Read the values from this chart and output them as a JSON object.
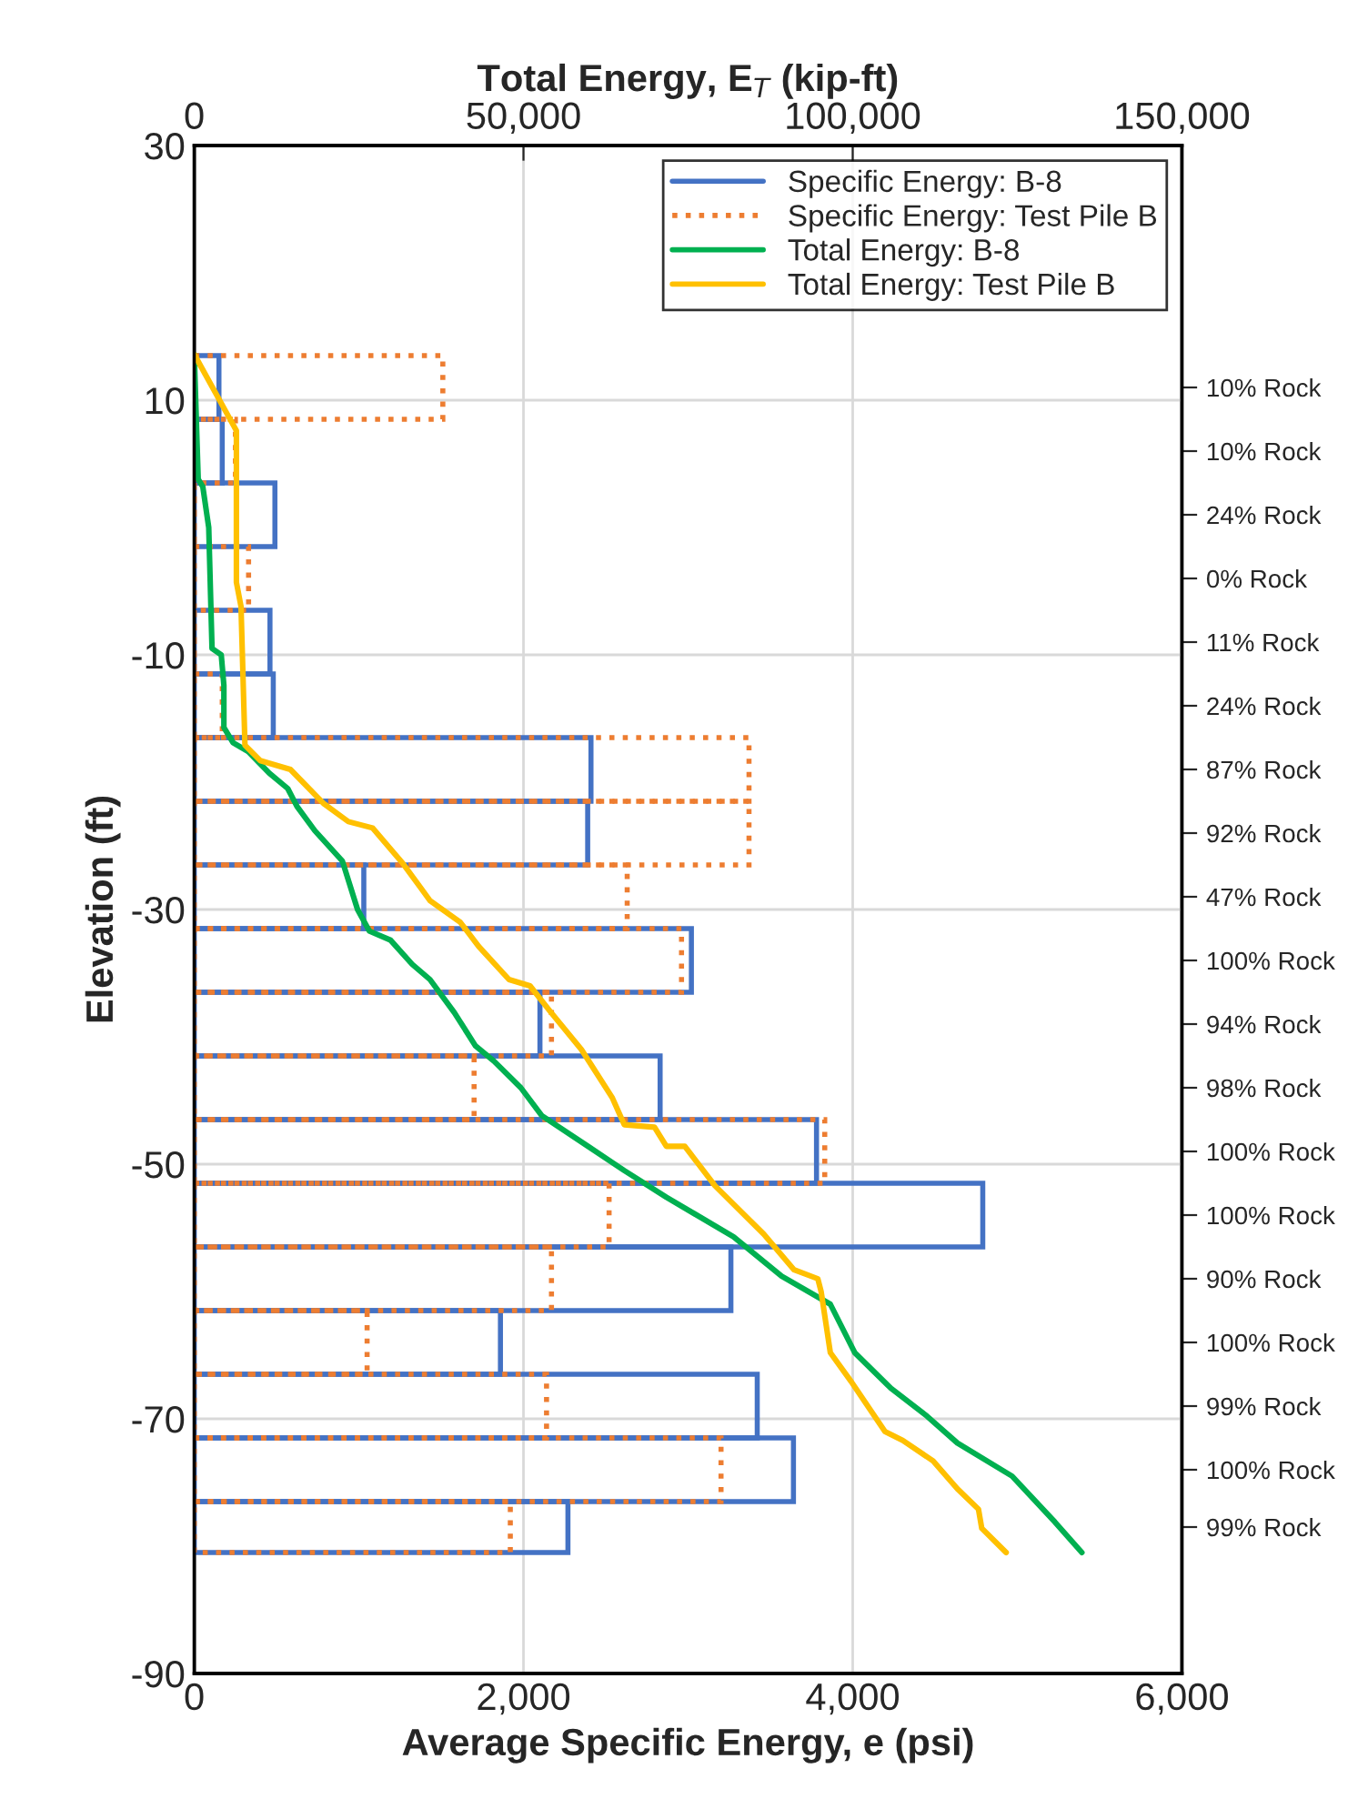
{
  "chart_data": {
    "type": "histogram",
    "orientation": "horizontal",
    "xlabel": "Average Specific Energy, e (psi)",
    "ylabel": "Elevation (ft)",
    "x2label": "Total Energy, E$_{T}$ (kip-ft)",
    "xlim": [
      0,
      6000
    ],
    "xticks": [
      0,
      {
        "value": 2000,
        "label": "2,000"
      },
      {
        "value": 4000,
        "label": "4,000"
      },
      {
        "value": 6000,
        "label": "6,000"
      }
    ],
    "x2lim": [
      0,
      150000
    ],
    "x2ticks": [
      0,
      {
        "value": 50000,
        "label": "50,000"
      },
      {
        "value": 100000,
        "label": "100,000"
      },
      {
        "value": 150000,
        "label": "150,000"
      }
    ],
    "ylim": [
      -90,
      30
    ],
    "yticks": [
      30,
      10,
      -10,
      -30,
      -50,
      -70,
      -90
    ],
    "annotations": [
      "10% Rock",
      "10% Rock",
      "24% Rock",
      "0% Rock",
      "11% Rock",
      "24% Rock",
      "87% Rock",
      "92% Rock",
      "47% Rock",
      "100% Rock",
      "94% Rock",
      "98% Rock",
      "100% Rock",
      "100% Rock",
      "90% Rock",
      "100% Rock",
      "99% Rock",
      "100% Rock",
      "99% Rock"
    ],
    "grid": true,
    "legend": "top right",
    "series": [
      {
        "name": "Specific Energy: B-8",
        "color": "#4472c4",
        "line_style": "solid",
        "bins": [
          13.5,
          8.5,
          3.5,
          -1.5,
          -6.5,
          -11.5,
          -16.5,
          -21.5,
          -26.5,
          -31.5,
          -36.5,
          -41.5,
          -46.5,
          -51.5,
          -56.5,
          -61.5,
          -66.5,
          -71.5,
          -76.5,
          -80.5
        ],
        "values": [
          150,
          170,
          490,
          0,
          460,
          480,
          2410,
          2390,
          1030,
          3020,
          2100,
          2830,
          3780,
          4790,
          3260,
          1860,
          3420,
          3640,
          2270
        ]
      },
      {
        "name": "Specific Energy: Test Pile B",
        "color": "#ed7d31",
        "line_style": "dotted",
        "bins": [
          13.5,
          8.5,
          3.5,
          -1.5,
          -6.5,
          -11.5,
          -16.5,
          -21.5,
          -26.5,
          -31.5,
          -36.5,
          -41.5,
          -46.5,
          -51.5,
          -56.5,
          -61.5,
          -66.5,
          -71.5,
          -76.5,
          -80.5
        ],
        "values": [
          1510,
          250,
          0,
          330,
          0,
          170,
          3370,
          3370,
          2630,
          2960,
          2170,
          1700,
          3830,
          2520,
          2170,
          1050,
          2140,
          3200,
          1920
        ]
      },
      {
        "name": "Total Energy: B-8",
        "color": "#00b050",
        "type": "line",
        "axis": "x2",
        "x": [
          13.6,
          3.8,
          3.2,
          0,
          -9.5,
          -10,
          -12.4,
          -15.7,
          -16.9,
          -17.6,
          -19.3,
          -20.5,
          -21.9,
          -23.8,
          -26.2,
          -30,
          -31.7,
          -32.4,
          -34.3,
          -35.5,
          -38.1,
          -40.7,
          -41.9,
          -44,
          -46.2,
          -48.6,
          -50.5,
          -52.6,
          -55.7,
          -58.8,
          -61,
          -64.8,
          -67.6,
          -69.8,
          -71.9,
          -74.5,
          -78.1,
          -80.5
        ],
        "values": [
          0,
          600,
          1300,
          2200,
          2700,
          4100,
          4500,
          4500,
          5900,
          8200,
          11400,
          14200,
          15600,
          18300,
          22500,
          24800,
          26600,
          29800,
          33100,
          35800,
          39500,
          42700,
          45500,
          49600,
          52800,
          59800,
          65300,
          71700,
          81900,
          89200,
          96600,
          100300,
          105800,
          111300,
          115900,
          124200,
          130700,
          134800
        ]
      },
      {
        "name": "Total Energy: Test Pile B",
        "color": "#ffc000",
        "type": "line",
        "axis": "x2",
        "x": [
          13.6,
          7.6,
          -4.3,
          -6.2,
          -17.1,
          -18.3,
          -19,
          -21.7,
          -23.1,
          -23.6,
          -26.4,
          -28.3,
          -29.3,
          -31,
          -32.9,
          -35.5,
          -36,
          -38.1,
          -41,
          -44.8,
          -46.9,
          -47.1,
          -48.6,
          -48.6,
          -51.7,
          -55.5,
          -58.3,
          -59,
          -60,
          -64.8,
          -67.1,
          -71,
          -71.7,
          -73.3,
          -75.5,
          -77.1,
          -78.6,
          -80.5
        ],
        "values": [
          0,
          6400,
          6400,
          7100,
          7700,
          10000,
          14600,
          19700,
          23400,
          27100,
          31700,
          34400,
          35800,
          40400,
          43200,
          47800,
          51000,
          54200,
          58800,
          63500,
          65300,
          69900,
          71700,
          74500,
          79100,
          86500,
          91100,
          94700,
          95200,
          96600,
          99800,
          104900,
          107600,
          112200,
          115900,
          119100,
          119600,
          123300
        ]
      }
    ]
  }
}
